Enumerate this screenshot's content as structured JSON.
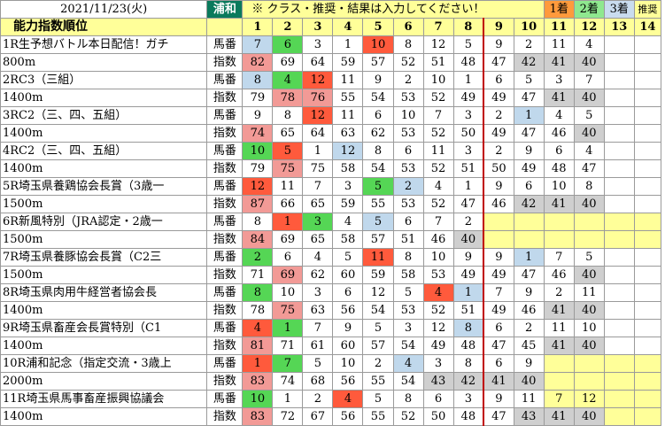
{
  "header": {
    "date": "2021/11/23(火)",
    "track": "浦和",
    "note": "※ クラス・推奨・結果は入力してください！",
    "badges": [
      "1着",
      "2着",
      "3着",
      "推奨"
    ],
    "section_title": "能力指数順位",
    "columns": [
      "1",
      "2",
      "3",
      "4",
      "5",
      "6",
      "7",
      "8",
      "9",
      "10",
      "11",
      "12",
      "13",
      "14"
    ]
  },
  "row_kinds": {
    "horse": "馬番",
    "index": "指数"
  },
  "colors": {
    "track_bg": "#0a7a5c",
    "note_bg": "#ffff99",
    "first": "#ff9a3c",
    "second": "#8fe88f",
    "third": "#c9dcef",
    "top_index": "#f29a96",
    "low_index": "#cfcfcf",
    "divider": "#c00000"
  },
  "races": [
    {
      "name": "1R生予想バトル本日配信！ガチ",
      "dist": "800m",
      "horses": [
        {
          "v": "7",
          "c": "blue"
        },
        {
          "v": "6",
          "c": "green"
        },
        {
          "v": "3"
        },
        {
          "v": "1"
        },
        {
          "v": "10",
          "c": "red"
        },
        {
          "v": "8"
        },
        {
          "v": "12"
        },
        {
          "v": "5"
        },
        {
          "v": "9"
        },
        {
          "v": "2"
        },
        {
          "v": "11"
        },
        {
          "v": "4"
        },
        {
          "v": ""
        },
        {
          "v": ""
        }
      ],
      "indexes": [
        {
          "v": "82",
          "c": "pink"
        },
        {
          "v": "69"
        },
        {
          "v": "64"
        },
        {
          "v": "59"
        },
        {
          "v": "57"
        },
        {
          "v": "52"
        },
        {
          "v": "51"
        },
        {
          "v": "48"
        },
        {
          "v": "47"
        },
        {
          "v": "42",
          "c": "gray"
        },
        {
          "v": "41",
          "c": "gray"
        },
        {
          "v": "40",
          "c": "gray"
        },
        {
          "v": ""
        },
        {
          "v": ""
        }
      ]
    },
    {
      "name": "2RC3（三組）",
      "dist": "1400m",
      "horses": [
        {
          "v": "8",
          "c": "blue"
        },
        {
          "v": "4",
          "c": "green"
        },
        {
          "v": "12",
          "c": "red"
        },
        {
          "v": "11"
        },
        {
          "v": "9"
        },
        {
          "v": "2"
        },
        {
          "v": "10"
        },
        {
          "v": "1"
        },
        {
          "v": "6"
        },
        {
          "v": "5"
        },
        {
          "v": "3"
        },
        {
          "v": "7"
        },
        {
          "v": ""
        },
        {
          "v": ""
        }
      ],
      "indexes": [
        {
          "v": "79"
        },
        {
          "v": "78",
          "c": "pink"
        },
        {
          "v": "76",
          "c": "pink"
        },
        {
          "v": "55"
        },
        {
          "v": "54"
        },
        {
          "v": "53"
        },
        {
          "v": "52"
        },
        {
          "v": "49"
        },
        {
          "v": "49"
        },
        {
          "v": "47"
        },
        {
          "v": "41",
          "c": "gray"
        },
        {
          "v": "40",
          "c": "gray"
        },
        {
          "v": ""
        },
        {
          "v": ""
        }
      ]
    },
    {
      "name": "3RC2（三、四、五組）",
      "dist": "1400m",
      "horses": [
        {
          "v": "9"
        },
        {
          "v": "8"
        },
        {
          "v": "12",
          "c": "red"
        },
        {
          "v": "11"
        },
        {
          "v": "6"
        },
        {
          "v": "10"
        },
        {
          "v": "7"
        },
        {
          "v": "3"
        },
        {
          "v": "2"
        },
        {
          "v": "1",
          "c": "blue"
        },
        {
          "v": "4"
        },
        {
          "v": "5"
        },
        {
          "v": ""
        },
        {
          "v": ""
        }
      ],
      "indexes": [
        {
          "v": "74",
          "c": "pink"
        },
        {
          "v": "65"
        },
        {
          "v": "64"
        },
        {
          "v": "63"
        },
        {
          "v": "62"
        },
        {
          "v": "53"
        },
        {
          "v": "52"
        },
        {
          "v": "50"
        },
        {
          "v": "49"
        },
        {
          "v": "47"
        },
        {
          "v": "46"
        },
        {
          "v": "40",
          "c": "gray"
        },
        {
          "v": ""
        },
        {
          "v": ""
        }
      ]
    },
    {
      "name": "4RC2（三、四、五組）",
      "dist": "1400m",
      "horses": [
        {
          "v": "10",
          "c": "green"
        },
        {
          "v": "5",
          "c": "red"
        },
        {
          "v": "1"
        },
        {
          "v": "12",
          "c": "blue"
        },
        {
          "v": "8"
        },
        {
          "v": "6"
        },
        {
          "v": "11"
        },
        {
          "v": "3"
        },
        {
          "v": "2"
        },
        {
          "v": "9"
        },
        {
          "v": "6"
        },
        {
          "v": "4"
        },
        {
          "v": ""
        },
        {
          "v": ""
        }
      ],
      "indexes": [
        {
          "v": "79"
        },
        {
          "v": "75",
          "c": "pink"
        },
        {
          "v": "75"
        },
        {
          "v": "58"
        },
        {
          "v": "54"
        },
        {
          "v": "53"
        },
        {
          "v": "52"
        },
        {
          "v": "51"
        },
        {
          "v": "50"
        },
        {
          "v": "49"
        },
        {
          "v": "48"
        },
        {
          "v": "47"
        },
        {
          "v": ""
        },
        {
          "v": ""
        }
      ]
    },
    {
      "name": "5R埼玉県養鶏協会長賞（3歳一",
      "dist": "1500m",
      "horses": [
        {
          "v": "12",
          "c": "red"
        },
        {
          "v": "11"
        },
        {
          "v": "7"
        },
        {
          "v": "3"
        },
        {
          "v": "5",
          "c": "green"
        },
        {
          "v": "2",
          "c": "blue"
        },
        {
          "v": "4"
        },
        {
          "v": "1"
        },
        {
          "v": "9"
        },
        {
          "v": "6"
        },
        {
          "v": "10"
        },
        {
          "v": "8"
        },
        {
          "v": ""
        },
        {
          "v": ""
        }
      ],
      "indexes": [
        {
          "v": "87",
          "c": "pink"
        },
        {
          "v": "66"
        },
        {
          "v": "65"
        },
        {
          "v": "59"
        },
        {
          "v": "55"
        },
        {
          "v": "53"
        },
        {
          "v": "52"
        },
        {
          "v": "47"
        },
        {
          "v": "46"
        },
        {
          "v": "42",
          "c": "gray"
        },
        {
          "v": "41",
          "c": "gray"
        },
        {
          "v": "40",
          "c": "gray"
        },
        {
          "v": ""
        },
        {
          "v": ""
        }
      ]
    },
    {
      "name": "6R新風特別（JRA認定・2歳一",
      "dist": "1500m",
      "horses": [
        {
          "v": "8"
        },
        {
          "v": "1",
          "c": "red"
        },
        {
          "v": "3",
          "c": "green"
        },
        {
          "v": "4"
        },
        {
          "v": "5",
          "c": "blue"
        },
        {
          "v": "6"
        },
        {
          "v": "7"
        },
        {
          "v": "2"
        },
        {
          "v": "",
          "c": "yellow"
        },
        {
          "v": "",
          "c": "yellow"
        },
        {
          "v": "",
          "c": "yellow"
        },
        {
          "v": "",
          "c": "yellow"
        },
        {
          "v": "",
          "c": "yellow"
        },
        {
          "v": "",
          "c": "yellow"
        }
      ],
      "indexes": [
        {
          "v": "84",
          "c": "pink"
        },
        {
          "v": "69"
        },
        {
          "v": "65"
        },
        {
          "v": "58"
        },
        {
          "v": "57"
        },
        {
          "v": "51"
        },
        {
          "v": "46"
        },
        {
          "v": "40",
          "c": "gray"
        },
        {
          "v": "",
          "c": "yellow"
        },
        {
          "v": "",
          "c": "yellow"
        },
        {
          "v": "",
          "c": "yellow"
        },
        {
          "v": "",
          "c": "yellow"
        },
        {
          "v": "",
          "c": "yellow"
        },
        {
          "v": "",
          "c": "yellow"
        }
      ]
    },
    {
      "name": "7R埼玉県養豚協会長賞（C2三",
      "dist": "1500m",
      "horses": [
        {
          "v": "2",
          "c": "green"
        },
        {
          "v": "6"
        },
        {
          "v": "4"
        },
        {
          "v": "5"
        },
        {
          "v": "11",
          "c": "red"
        },
        {
          "v": "8"
        },
        {
          "v": "10"
        },
        {
          "v": "9"
        },
        {
          "v": "9"
        },
        {
          "v": "1",
          "c": "blue"
        },
        {
          "v": "7"
        },
        {
          "v": "5"
        },
        {
          "v": ""
        },
        {
          "v": ""
        }
      ],
      "indexes": [
        {
          "v": "71"
        },
        {
          "v": "69",
          "c": "pink"
        },
        {
          "v": "62"
        },
        {
          "v": "60"
        },
        {
          "v": "59"
        },
        {
          "v": "58"
        },
        {
          "v": "53"
        },
        {
          "v": "49"
        },
        {
          "v": "49"
        },
        {
          "v": "47"
        },
        {
          "v": "46"
        },
        {
          "v": "40",
          "c": "gray"
        },
        {
          "v": ""
        },
        {
          "v": ""
        }
      ]
    },
    {
      "name": "8R埼玉県肉用牛経営者協会長",
      "dist": "1400m",
      "horses": [
        {
          "v": "8",
          "c": "green"
        },
        {
          "v": "10"
        },
        {
          "v": "3"
        },
        {
          "v": "6"
        },
        {
          "v": "12"
        },
        {
          "v": "5"
        },
        {
          "v": "4",
          "c": "red"
        },
        {
          "v": "1",
          "c": "blue"
        },
        {
          "v": "7"
        },
        {
          "v": "9"
        },
        {
          "v": "2"
        },
        {
          "v": "11"
        },
        {
          "v": ""
        },
        {
          "v": ""
        }
      ],
      "indexes": [
        {
          "v": "78"
        },
        {
          "v": "75",
          "c": "pink"
        },
        {
          "v": "63"
        },
        {
          "v": "56"
        },
        {
          "v": "54"
        },
        {
          "v": "53"
        },
        {
          "v": "52"
        },
        {
          "v": "51"
        },
        {
          "v": "49"
        },
        {
          "v": "46"
        },
        {
          "v": "41",
          "c": "gray"
        },
        {
          "v": "40",
          "c": "gray"
        },
        {
          "v": ""
        },
        {
          "v": ""
        }
      ]
    },
    {
      "name": "9R埼玉県畜産会長賞特別（C1",
      "dist": "1400m",
      "horses": [
        {
          "v": "4",
          "c": "red"
        },
        {
          "v": "1",
          "c": "green"
        },
        {
          "v": "7"
        },
        {
          "v": "9"
        },
        {
          "v": "5"
        },
        {
          "v": "3"
        },
        {
          "v": "12"
        },
        {
          "v": "8",
          "c": "blue"
        },
        {
          "v": "6"
        },
        {
          "v": "2"
        },
        {
          "v": "11"
        },
        {
          "v": "10"
        },
        {
          "v": ""
        },
        {
          "v": ""
        }
      ],
      "indexes": [
        {
          "v": "81",
          "c": "pink"
        },
        {
          "v": "71"
        },
        {
          "v": "61"
        },
        {
          "v": "60"
        },
        {
          "v": "57"
        },
        {
          "v": "54"
        },
        {
          "v": "49"
        },
        {
          "v": "48"
        },
        {
          "v": "47"
        },
        {
          "v": "45"
        },
        {
          "v": "41",
          "c": "gray"
        },
        {
          "v": "40",
          "c": "gray"
        },
        {
          "v": ""
        },
        {
          "v": ""
        }
      ]
    },
    {
      "name": "10R浦和記念（指定交流・3歳上",
      "dist": "2000m",
      "horses": [
        {
          "v": "1",
          "c": "red"
        },
        {
          "v": "7",
          "c": "green"
        },
        {
          "v": "5"
        },
        {
          "v": "10"
        },
        {
          "v": "2"
        },
        {
          "v": "4",
          "c": "blue"
        },
        {
          "v": "3"
        },
        {
          "v": "8"
        },
        {
          "v": "6"
        },
        {
          "v": "9"
        },
        {
          "v": "",
          "c": "yellow"
        },
        {
          "v": "",
          "c": "yellow"
        },
        {
          "v": "",
          "c": "yellow"
        },
        {
          "v": "",
          "c": "yellow"
        }
      ],
      "indexes": [
        {
          "v": "83",
          "c": "pink"
        },
        {
          "v": "74"
        },
        {
          "v": "68"
        },
        {
          "v": "56"
        },
        {
          "v": "55"
        },
        {
          "v": "54"
        },
        {
          "v": "43",
          "c": "gray"
        },
        {
          "v": "42",
          "c": "gray"
        },
        {
          "v": "41",
          "c": "gray"
        },
        {
          "v": "40",
          "c": "gray"
        },
        {
          "v": "",
          "c": "yellow"
        },
        {
          "v": "",
          "c": "yellow"
        },
        {
          "v": "",
          "c": "yellow"
        },
        {
          "v": "",
          "c": "yellow"
        }
      ]
    },
    {
      "name": "11R埼玉県馬事畜産振興協議会",
      "dist": "1400m",
      "horses": [
        {
          "v": "10",
          "c": "green"
        },
        {
          "v": "1"
        },
        {
          "v": "2"
        },
        {
          "v": "4",
          "c": "red"
        },
        {
          "v": "5"
        },
        {
          "v": "8"
        },
        {
          "v": "6"
        },
        {
          "v": "3"
        },
        {
          "v": "9"
        },
        {
          "v": "11"
        },
        {
          "v": "7",
          "c": "yellow"
        },
        {
          "v": "12",
          "c": "yellow"
        },
        {
          "v": "",
          "c": "yellow"
        },
        {
          "v": "",
          "c": "yellow"
        }
      ],
      "indexes": [
        {
          "v": "83",
          "c": "pink"
        },
        {
          "v": "72"
        },
        {
          "v": "67"
        },
        {
          "v": "56"
        },
        {
          "v": "55"
        },
        {
          "v": "52"
        },
        {
          "v": "50"
        },
        {
          "v": "48"
        },
        {
          "v": "47"
        },
        {
          "v": "43",
          "c": "gray"
        },
        {
          "v": "41",
          "c": "gray"
        },
        {
          "v": "40",
          "c": "gray"
        },
        {
          "v": "",
          "c": "yellow"
        },
        {
          "v": "",
          "c": "yellow"
        }
      ]
    }
  ]
}
